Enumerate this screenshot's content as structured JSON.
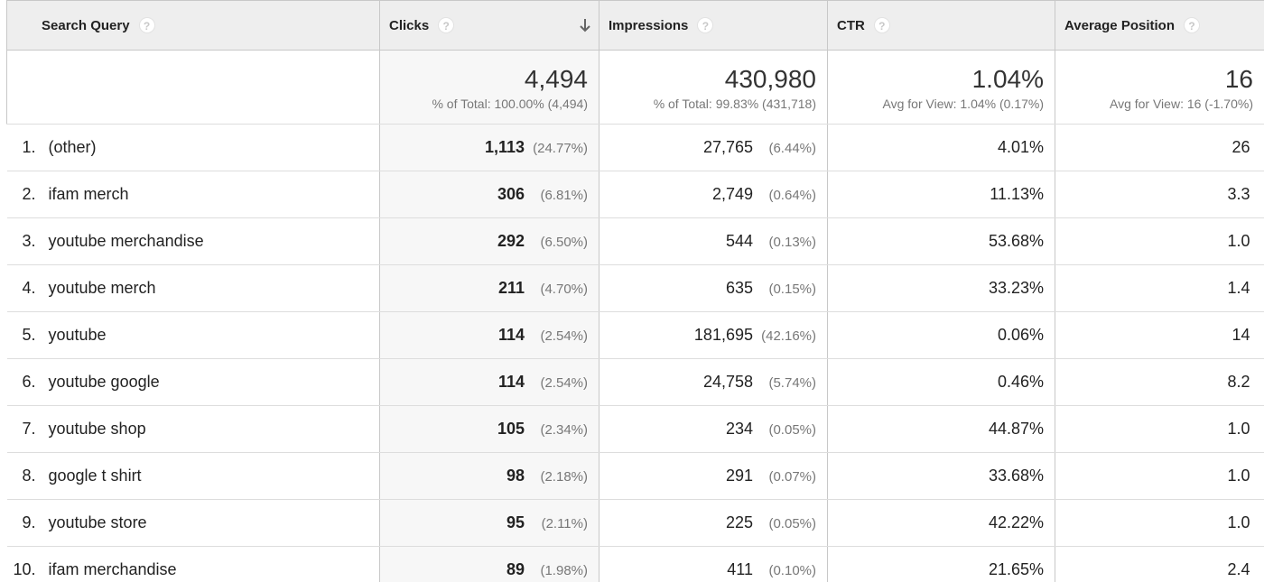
{
  "header": {
    "query": "Search Query",
    "clicks": "Clicks",
    "impressions": "Impressions",
    "ctr": "CTR",
    "position": "Average Position",
    "help_glyph": "?"
  },
  "totals": {
    "clicks": {
      "value": "4,494",
      "sub": "% of Total: 100.00% (4,494)"
    },
    "impressions": {
      "value": "430,980",
      "sub": "% of Total: 99.83% (431,718)"
    },
    "ctr": {
      "value": "1.04%",
      "sub": "Avg for View: 1.04% (0.17%)"
    },
    "position": {
      "value": "16",
      "sub": "Avg for View: 16 (-1.70%)"
    }
  },
  "rows": [
    {
      "index": "1.",
      "query": "(other)",
      "clicks": "1,113",
      "clicks_pct": "(24.77%)",
      "impressions": "27,765",
      "impressions_pct": "(6.44%)",
      "ctr": "4.01%",
      "position": "26"
    },
    {
      "index": "2.",
      "query": "ifam merch",
      "clicks": "306",
      "clicks_pct": "(6.81%)",
      "impressions": "2,749",
      "impressions_pct": "(0.64%)",
      "ctr": "11.13%",
      "position": "3.3"
    },
    {
      "index": "3.",
      "query": "youtube merchandise",
      "clicks": "292",
      "clicks_pct": "(6.50%)",
      "impressions": "544",
      "impressions_pct": "(0.13%)",
      "ctr": "53.68%",
      "position": "1.0"
    },
    {
      "index": "4.",
      "query": "youtube merch",
      "clicks": "211",
      "clicks_pct": "(4.70%)",
      "impressions": "635",
      "impressions_pct": "(0.15%)",
      "ctr": "33.23%",
      "position": "1.4"
    },
    {
      "index": "5.",
      "query": "youtube",
      "clicks": "114",
      "clicks_pct": "(2.54%)",
      "impressions": "181,695",
      "impressions_pct": "(42.16%)",
      "ctr": "0.06%",
      "position": "14"
    },
    {
      "index": "6.",
      "query": "youtube google",
      "clicks": "114",
      "clicks_pct": "(2.54%)",
      "impressions": "24,758",
      "impressions_pct": "(5.74%)",
      "ctr": "0.46%",
      "position": "8.2"
    },
    {
      "index": "7.",
      "query": "youtube shop",
      "clicks": "105",
      "clicks_pct": "(2.34%)",
      "impressions": "234",
      "impressions_pct": "(0.05%)",
      "ctr": "44.87%",
      "position": "1.0"
    },
    {
      "index": "8.",
      "query": "google t shirt",
      "clicks": "98",
      "clicks_pct": "(2.18%)",
      "impressions": "291",
      "impressions_pct": "(0.07%)",
      "ctr": "33.68%",
      "position": "1.0"
    },
    {
      "index": "9.",
      "query": "youtube store",
      "clicks": "95",
      "clicks_pct": "(2.11%)",
      "impressions": "225",
      "impressions_pct": "(0.05%)",
      "ctr": "42.22%",
      "position": "1.0"
    },
    {
      "index": "10.",
      "query": "ifam merchandise",
      "clicks": "89",
      "clicks_pct": "(1.98%)",
      "impressions": "411",
      "impressions_pct": "(0.10%)",
      "ctr": "21.65%",
      "position": "2.4"
    }
  ],
  "icons": {
    "help": "help-icon",
    "sort": "sort-descending-icon"
  },
  "colors": {
    "header_bg": "#eeeeee",
    "sorted_column_bg": "#f7f7f7",
    "border": "#c8c8c8",
    "muted_text": "#777777"
  }
}
